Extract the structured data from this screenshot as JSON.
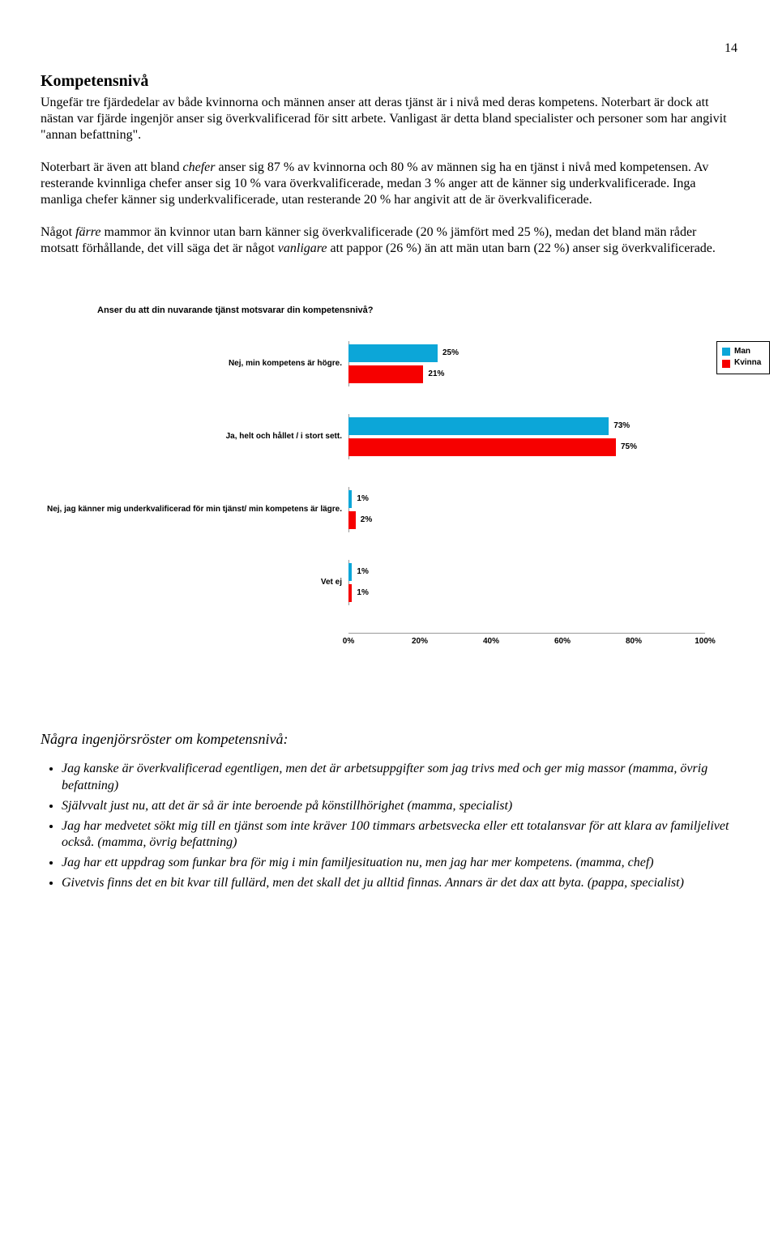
{
  "page_number": "14",
  "heading": "Kompetensnivå",
  "para1": "Ungefär tre fjärdedelar av både kvinnorna och männen anser att deras tjänst är i nivå med deras kompetens. Noterbart är dock att nästan var fjärde ingenjör anser sig överkvalificerad för sitt arbete. Vanligast är detta bland specialister och personer som har angivit \"annan befattning\".",
  "para2_pre": "Noterbart är även att bland ",
  "para2_chefer": "chefer",
  "para2_post": " anser sig 87 % av kvinnorna och 80 % av männen sig ha en tjänst i nivå med kompetensen. Av resterande kvinnliga chefer anser sig 10 % vara överkvalificerade, medan 3 % anger att de känner sig underkvalificerade. Inga manliga chefer känner sig underkvalificerade, utan resterande 20 % har angivit att de är överkvalificerade.",
  "para3_a": "Något ",
  "para3_b": "färre",
  "para3_c": " mammor än kvinnor utan barn känner sig överkvalificerade (20 % jämfört med 25 %), medan det bland män råder motsatt förhållande, det vill säga det är något ",
  "para3_d": "vanligare",
  "para3_e": " att pappor (26 %) än att män utan barn (22 %) anser sig överkvalificerade.",
  "chart": {
    "title": "Anser du att din nuvarande tjänst motsvarar din kompetensnivå?",
    "colors": {
      "man": "#0ca6d8",
      "kvinna": "#f60000"
    },
    "legend": {
      "man": "Man",
      "kvinna": "Kvinna"
    },
    "x_max": 100,
    "x_ticks": [
      "0%",
      "20%",
      "40%",
      "60%",
      "80%",
      "100%"
    ],
    "rows": [
      {
        "label": "Nej, min kompetens är högre.",
        "man": 25,
        "kvinna": 21
      },
      {
        "label": "Ja, helt och hållet / i stort sett.",
        "man": 73,
        "kvinna": 75
      },
      {
        "label": "Nej, jag känner mig underkvalificerad för min tjänst/ min kompetens är lägre.",
        "man": 1,
        "kvinna": 2
      },
      {
        "label": "Vet ej",
        "man": 1,
        "kvinna": 1
      }
    ]
  },
  "quotes_title": "Några ingenjörsröster om kompetensnivå:",
  "quotes": [
    "Jag kanske är överkvalificerad egentligen, men det är arbetsuppgifter som jag trivs med och ger mig massor (mamma, övrig befattning)",
    "Självvalt just nu, att det är så är inte beroende på könstillhörighet (mamma, specialist)",
    "Jag har medvetet sökt mig till en tjänst som inte kräver 100 timmars arbetsvecka eller ett totalansvar för att klara av familjelivet också. (mamma, övrig befattning)",
    "Jag har ett uppdrag som funkar bra för mig i min familjesituation nu, men jag har mer kompetens. (mamma, chef)",
    "Givetvis finns det en bit kvar till fullärd, men det skall det ju alltid finnas. Annars är det dax att byta. (pappa, specialist)"
  ]
}
